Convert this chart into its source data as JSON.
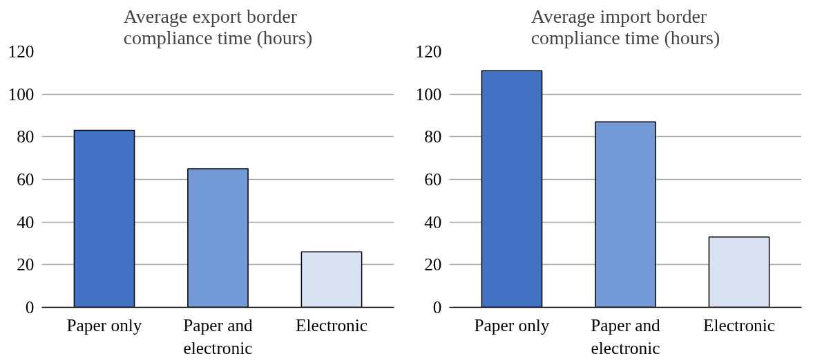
{
  "chart_data": [
    {
      "type": "bar",
      "title": "Average export border compliance time (hours)",
      "categories": [
        "Paper only",
        "Paper and electronic",
        "Electronic"
      ],
      "values": [
        83,
        65,
        26
      ],
      "colors": [
        "#4472c4",
        "#7399d6",
        "#dae3f3"
      ],
      "ylim": [
        0,
        120
      ],
      "yticks": [
        0,
        20,
        40,
        60,
        80,
        100,
        120
      ],
      "grid": "y"
    },
    {
      "type": "bar",
      "title": "Average import border compliance time (hours)",
      "categories": [
        "Paper only",
        "Paper and electronic",
        "Electronic"
      ],
      "values": [
        111,
        87,
        33
      ],
      "colors": [
        "#4472c4",
        "#7399d6",
        "#dae3f3"
      ],
      "ylim": [
        0,
        120
      ],
      "yticks": [
        0,
        20,
        40,
        60,
        80,
        100,
        120
      ],
      "grid": "y"
    }
  ]
}
